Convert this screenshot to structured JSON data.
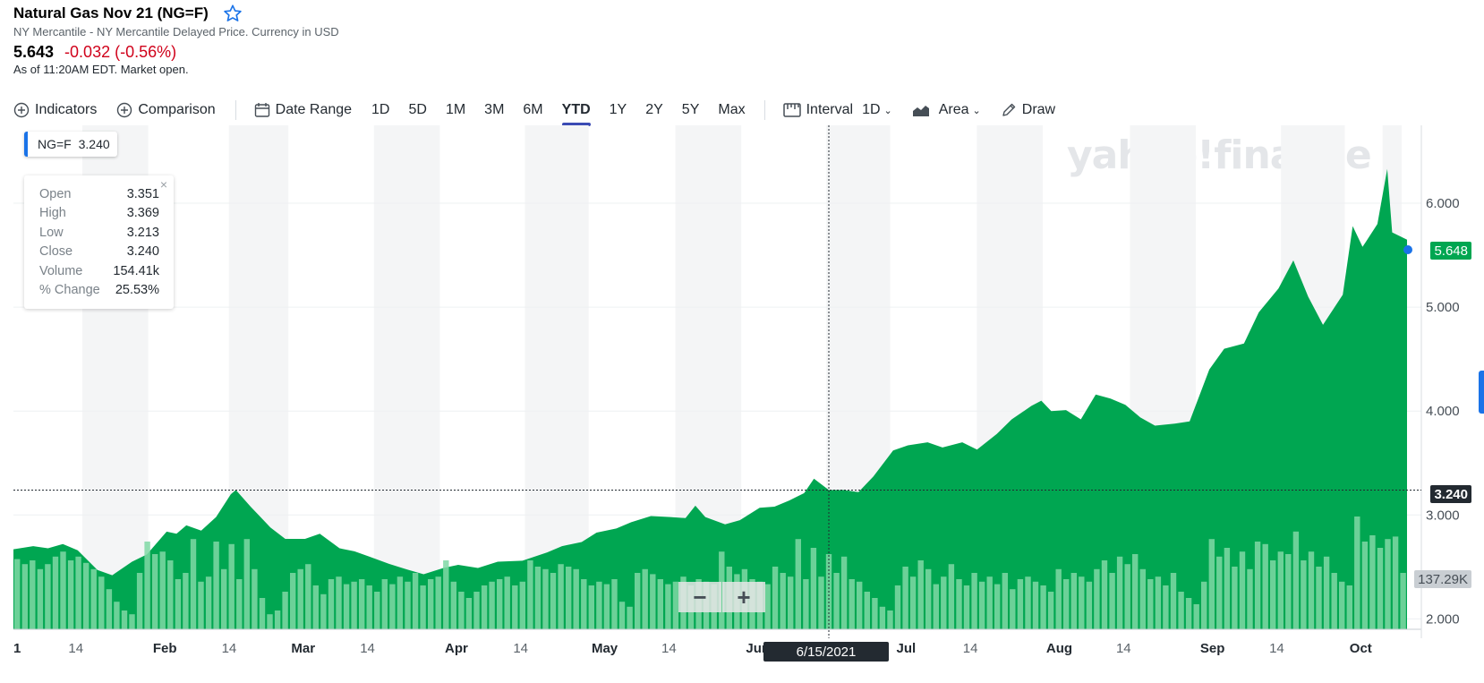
{
  "header": {
    "title": "Natural Gas Nov 21 (NG=F)",
    "subtitle": "NY Mercantile - NY Mercantile Delayed Price. Currency in USD",
    "price": "5.643",
    "change": "-0.032 (-0.56%)",
    "as_of": "As of 11:20AM EDT. Market open."
  },
  "toolbar": {
    "indicators": "Indicators",
    "comparison": "Comparison",
    "date_range": "Date Range",
    "ranges": [
      "1D",
      "5D",
      "1M",
      "3M",
      "6M",
      "YTD",
      "1Y",
      "2Y",
      "5Y",
      "Max"
    ],
    "active_range": "YTD",
    "interval_label": "Interval",
    "interval_value": "1D",
    "chart_type": "Area",
    "draw": "Draw"
  },
  "legend": {
    "symbol": "NG=F",
    "value": "3.240"
  },
  "tooltip": {
    "rows": [
      {
        "label": "Open",
        "value": "3.351"
      },
      {
        "label": "High",
        "value": "3.369"
      },
      {
        "label": "Low",
        "value": "3.213"
      },
      {
        "label": "Close",
        "value": "3.240"
      },
      {
        "label": "Volume",
        "value": "154.41k"
      },
      {
        "label": "% Change",
        "value": "25.53%"
      }
    ],
    "close": "×"
  },
  "watermark": "yahoo!finance",
  "tags": {
    "current_price": "5.648",
    "crosshair_price": "3.240",
    "volume": "137.29K",
    "crosshair_date": "6/15/2021"
  },
  "zoom": {
    "minus": "−",
    "plus": "+"
  },
  "colors": {
    "area": "#00a651",
    "volume": "#7fd8a4",
    "accent": "#1a73e8",
    "negative": "#d0021b"
  },
  "chart_data": {
    "type": "area",
    "title": "Natural Gas Nov 21 (NG=F)",
    "xlabel": "",
    "ylabel": "",
    "ylim": [
      1.9,
      6.75
    ],
    "y_ticks": [
      "2.000",
      "3.000",
      "4.000",
      "5.000",
      "6.000"
    ],
    "x_ticks": [
      "1",
      "14",
      "Feb",
      "14",
      "Mar",
      "14",
      "Apr",
      "14",
      "May",
      "14",
      "Jun",
      "Jul",
      "14",
      "Aug",
      "14",
      "Sep",
      "14",
      "Oct"
    ],
    "x_tick_dates": [
      "2021-01-01",
      "2021-01-14",
      "2021-02-01",
      "2021-02-14",
      "2021-03-01",
      "2021-03-14",
      "2021-04-01",
      "2021-04-14",
      "2021-05-01",
      "2021-05-14",
      "2021-06-01",
      "2021-07-01",
      "2021-07-14",
      "2021-08-01",
      "2021-08-14",
      "2021-09-01",
      "2021-09-14",
      "2021-10-01"
    ],
    "x_range": [
      "2021-01-01",
      "2021-10-10"
    ],
    "crosshair": {
      "date": "2021-06-15",
      "value": 3.24
    },
    "grid": true,
    "series": [
      {
        "name": "NG=F",
        "points": [
          [
            "2021-01-01",
            2.67
          ],
          [
            "2021-01-05",
            2.7
          ],
          [
            "2021-01-08",
            2.68
          ],
          [
            "2021-01-11",
            2.72
          ],
          [
            "2021-01-14",
            2.66
          ],
          [
            "2021-01-18",
            2.47
          ],
          [
            "2021-01-21",
            2.42
          ],
          [
            "2021-01-25",
            2.55
          ],
          [
            "2021-01-28",
            2.62
          ],
          [
            "2021-02-01",
            2.84
          ],
          [
            "2021-02-03",
            2.82
          ],
          [
            "2021-02-05",
            2.9
          ],
          [
            "2021-02-08",
            2.85
          ],
          [
            "2021-02-11",
            2.98
          ],
          [
            "2021-02-14",
            3.2
          ],
          [
            "2021-02-15",
            3.24
          ],
          [
            "2021-02-18",
            3.08
          ],
          [
            "2021-02-20",
            2.98
          ],
          [
            "2021-02-22",
            2.88
          ],
          [
            "2021-02-25",
            2.77
          ],
          [
            "2021-03-01",
            2.77
          ],
          [
            "2021-03-04",
            2.82
          ],
          [
            "2021-03-08",
            2.68
          ],
          [
            "2021-03-11",
            2.65
          ],
          [
            "2021-03-14",
            2.6
          ],
          [
            "2021-03-18",
            2.53
          ],
          [
            "2021-03-22",
            2.47
          ],
          [
            "2021-03-25",
            2.43
          ],
          [
            "2021-03-29",
            2.49
          ],
          [
            "2021-04-01",
            2.52
          ],
          [
            "2021-04-05",
            2.49
          ],
          [
            "2021-04-09",
            2.55
          ],
          [
            "2021-04-14",
            2.56
          ],
          [
            "2021-04-19",
            2.64
          ],
          [
            "2021-04-22",
            2.7
          ],
          [
            "2021-04-26",
            2.74
          ],
          [
            "2021-04-29",
            2.83
          ],
          [
            "2021-05-03",
            2.87
          ],
          [
            "2021-05-06",
            2.93
          ],
          [
            "2021-05-10",
            2.99
          ],
          [
            "2021-05-14",
            2.98
          ],
          [
            "2021-05-17",
            2.97
          ],
          [
            "2021-05-19",
            3.09
          ],
          [
            "2021-05-21",
            2.98
          ],
          [
            "2021-05-25",
            2.91
          ],
          [
            "2021-05-28",
            2.95
          ],
          [
            "2021-06-01",
            3.07
          ],
          [
            "2021-06-04",
            3.08
          ],
          [
            "2021-06-07",
            3.14
          ],
          [
            "2021-06-10",
            3.21
          ],
          [
            "2021-06-12",
            3.35
          ],
          [
            "2021-06-15",
            3.24
          ],
          [
            "2021-06-18",
            3.24
          ],
          [
            "2021-06-21",
            3.22
          ],
          [
            "2021-06-24",
            3.37
          ],
          [
            "2021-06-28",
            3.62
          ],
          [
            "2021-07-01",
            3.67
          ],
          [
            "2021-07-05",
            3.7
          ],
          [
            "2021-07-08",
            3.65
          ],
          [
            "2021-07-12",
            3.7
          ],
          [
            "2021-07-15",
            3.63
          ],
          [
            "2021-07-19",
            3.78
          ],
          [
            "2021-07-22",
            3.92
          ],
          [
            "2021-07-26",
            4.05
          ],
          [
            "2021-07-28",
            4.1
          ],
          [
            "2021-07-30",
            4.0
          ],
          [
            "2021-08-02",
            4.01
          ],
          [
            "2021-08-05",
            3.92
          ],
          [
            "2021-08-08",
            4.16
          ],
          [
            "2021-08-11",
            4.12
          ],
          [
            "2021-08-14",
            4.06
          ],
          [
            "2021-08-17",
            3.94
          ],
          [
            "2021-08-20",
            3.86
          ],
          [
            "2021-08-24",
            3.88
          ],
          [
            "2021-08-27",
            3.9
          ],
          [
            "2021-08-31",
            4.4
          ],
          [
            "2021-09-03",
            4.6
          ],
          [
            "2021-09-07",
            4.65
          ],
          [
            "2021-09-10",
            4.95
          ],
          [
            "2021-09-14",
            5.18
          ],
          [
            "2021-09-17",
            5.45
          ],
          [
            "2021-09-20",
            5.1
          ],
          [
            "2021-09-23",
            4.83
          ],
          [
            "2021-09-27",
            5.12
          ],
          [
            "2021-09-29",
            5.78
          ],
          [
            "2021-10-01",
            5.58
          ],
          [
            "2021-10-04",
            5.8
          ],
          [
            "2021-10-06",
            6.33
          ],
          [
            "2021-10-07",
            5.72
          ],
          [
            "2021-10-10",
            5.65
          ]
        ]
      }
    ],
    "volume": [
      0.56,
      0.52,
      0.55,
      0.48,
      0.52,
      0.58,
      0.62,
      0.55,
      0.58,
      0.53,
      0.48,
      0.42,
      0.32,
      0.22,
      0.15,
      0.12,
      0.45,
      0.7,
      0.6,
      0.62,
      0.55,
      0.4,
      0.45,
      0.72,
      0.38,
      0.42,
      0.7,
      0.48,
      0.68,
      0.4,
      0.72,
      0.48,
      0.25,
      0.12,
      0.15,
      0.3,
      0.45,
      0.48,
      0.52,
      0.35,
      0.28,
      0.4,
      0.42,
      0.36,
      0.38,
      0.4,
      0.35,
      0.3,
      0.4,
      0.36,
      0.42,
      0.38,
      0.45,
      0.35,
      0.4,
      0.42,
      0.55,
      0.38,
      0.3,
      0.25,
      0.3,
      0.35,
      0.38,
      0.4,
      0.42,
      0.35,
      0.38,
      0.55,
      0.5,
      0.48,
      0.45,
      0.52,
      0.5,
      0.48,
      0.4,
      0.35,
      0.38,
      0.36,
      0.4,
      0.22,
      0.18,
      0.45,
      0.48,
      0.44,
      0.4,
      0.36,
      0.38,
      0.42,
      0.35,
      0.4,
      0.38,
      0.36,
      0.62,
      0.5,
      0.44,
      0.48,
      0.4,
      0.38,
      0.36,
      0.5,
      0.45,
      0.42,
      0.72,
      0.4,
      0.65,
      0.42,
      0.6,
      0.45,
      0.58,
      0.4,
      0.38,
      0.3,
      0.25,
      0.18,
      0.15,
      0.35,
      0.5,
      0.42,
      0.55,
      0.48,
      0.36,
      0.42,
      0.52,
      0.4,
      0.35,
      0.45,
      0.38,
      0.42,
      0.36,
      0.45,
      0.32,
      0.4,
      0.42,
      0.38,
      0.35,
      0.3,
      0.48,
      0.4,
      0.45,
      0.42,
      0.38,
      0.48,
      0.55,
      0.45,
      0.58,
      0.52,
      0.6,
      0.48,
      0.4,
      0.42,
      0.35,
      0.45,
      0.3,
      0.25,
      0.2,
      0.38,
      0.72,
      0.58,
      0.65,
      0.5,
      0.62,
      0.48,
      0.7,
      0.68,
      0.55,
      0.62,
      0.6,
      0.78,
      0.55,
      0.62,
      0.5,
      0.58,
      0.45,
      0.38,
      0.35,
      0.9,
      0.7,
      0.75,
      0.65,
      0.72,
      0.74,
      0.45
    ]
  }
}
